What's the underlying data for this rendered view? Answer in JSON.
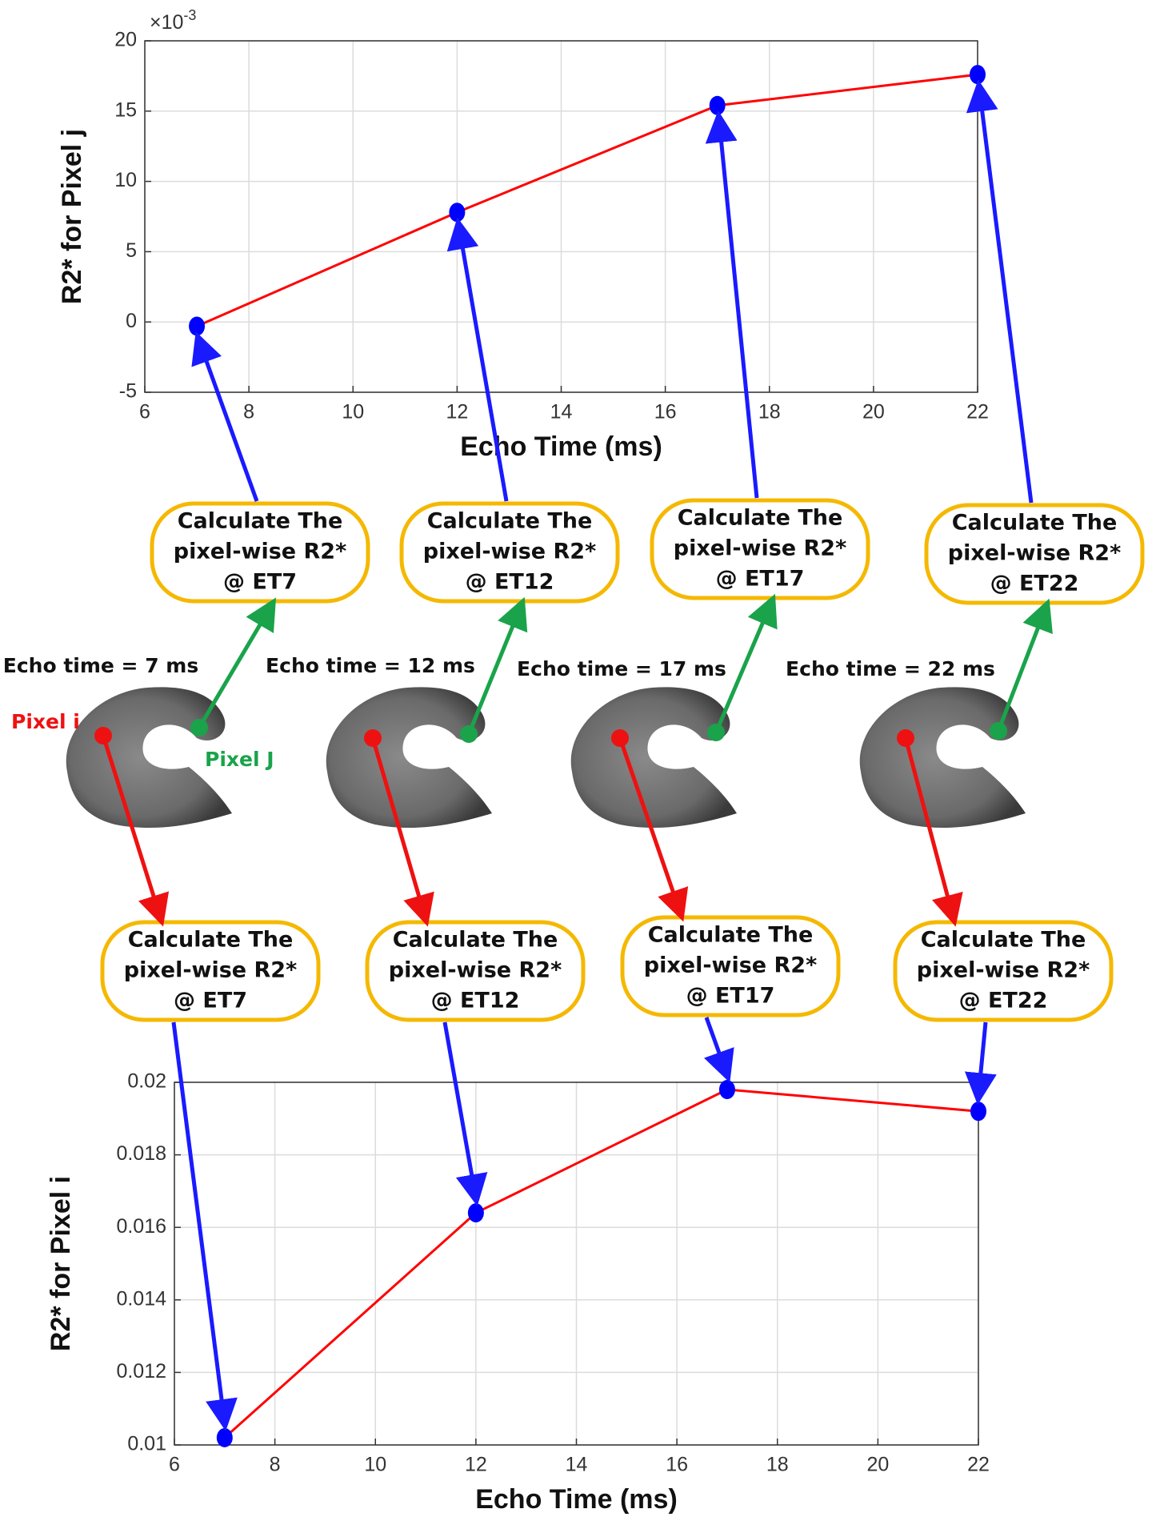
{
  "chart_data": [
    {
      "type": "line",
      "xlabel": "Echo Time (ms)",
      "ylabel": "R2* for Pixel j",
      "y_multiplier": {
        "base": "×10",
        "exponent": "-3"
      },
      "x": [
        7,
        12,
        17,
        22
      ],
      "values": [
        -0.3,
        7.8,
        15.4,
        17.6
      ],
      "color": "#ff0000",
      "marker_color": "#0000ff",
      "xlim": [
        6,
        22
      ],
      "xticks": [
        6,
        8,
        10,
        12,
        14,
        16,
        18,
        20,
        22
      ],
      "ylim": [
        -5,
        20
      ],
      "yticks": [
        -5,
        0,
        5,
        10,
        15,
        20
      ],
      "grid": true
    },
    {
      "type": "line",
      "xlabel": "Echo Time (ms)",
      "ylabel": "R2* for Pixel i",
      "x": [
        7,
        12,
        17,
        22
      ],
      "values": [
        0.0102,
        0.0164,
        0.0198,
        0.0192
      ],
      "color": "#ff0000",
      "marker_color": "#0000ff",
      "xlim": [
        6,
        22
      ],
      "xticks": [
        6,
        8,
        10,
        12,
        14,
        16,
        18,
        20,
        22
      ],
      "ylim": [
        0.01,
        0.02
      ],
      "yticks": [
        0.01,
        0.012,
        0.014,
        0.016,
        0.018,
        0.02
      ],
      "grid": true
    }
  ],
  "diagram": {
    "echo_labels": [
      "Echo time = 7 ms",
      "Echo time = 12 ms",
      "Echo time = 17 ms",
      "Echo time = 22 ms"
    ],
    "pixel_i_label": "Pixel i",
    "pixel_j_label": "Pixel J",
    "top_boxes": [
      [
        "Calculate The",
        "pixel-wise R2*",
        "@ ET7"
      ],
      [
        "Calculate The",
        "pixel-wise R2*",
        "@ ET12"
      ],
      [
        "Calculate The",
        "pixel-wise R2*",
        "@ ET17"
      ],
      [
        "Calculate The",
        "pixel-wise R2*",
        "@ ET22"
      ]
    ],
    "bottom_boxes": [
      [
        "Calculate The",
        "pixel-wise R2*",
        "@ ET7"
      ],
      [
        "Calculate The",
        "pixel-wise R2*",
        "@ ET12"
      ],
      [
        "Calculate The",
        "pixel-wise R2*",
        "@ ET17"
      ],
      [
        "Calculate The",
        "pixel-wise R2*",
        "@ ET22"
      ]
    ]
  }
}
